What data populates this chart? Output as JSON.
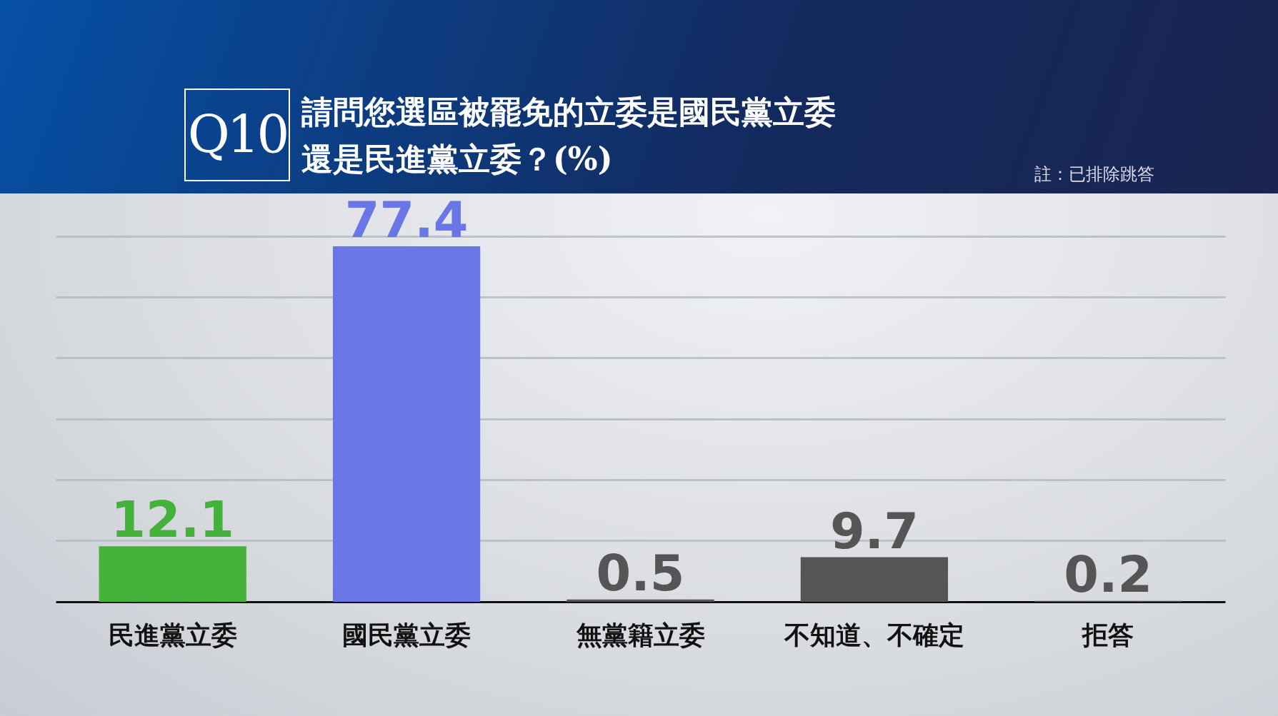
{
  "chart_data": {
    "type": "bar",
    "title": "請問您選區被罷免的立委是國民黨立委還是民進黨立委？(%)",
    "annotations": [
      "Q10",
      "註：已排除跳答"
    ],
    "categories": [
      "民進黨立委",
      "國民黨立委",
      "無黨籍立委",
      "不知道、不確定",
      "拒答"
    ],
    "values": [
      12.1,
      77.4,
      0.5,
      9.7,
      0.2
    ],
    "colors": [
      "#44b23a",
      "#6a76e6",
      "#555555",
      "#555555",
      "#555555"
    ],
    "ylim": [
      0,
      88.9
    ],
    "yticks": [
      {
        "value": 13.3,
        "label": null
      },
      {
        "value": 26.5,
        "label": null
      },
      {
        "value": 39.8,
        "label": null
      },
      {
        "value": 53.1,
        "label": null
      },
      {
        "value": 66.4,
        "label": null
      },
      {
        "value": 79.6,
        "label": null
      }
    ],
    "grid": "y",
    "data_labels": true,
    "tick_labels": "x"
  }
}
